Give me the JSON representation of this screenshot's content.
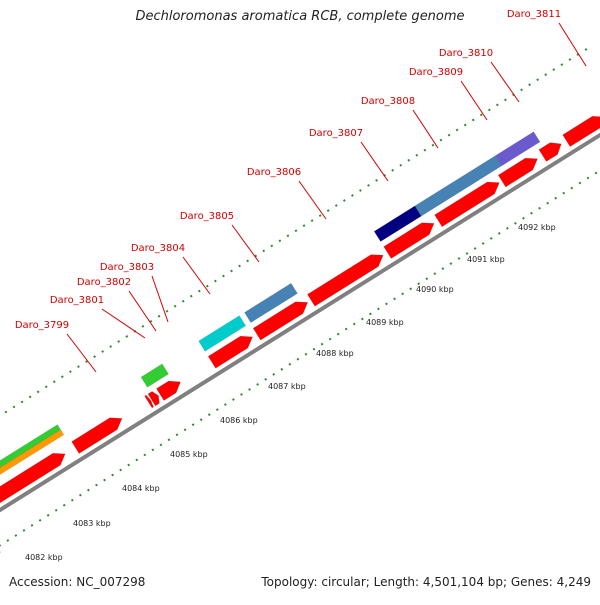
{
  "map": {
    "title": "Dechloromonas aromatica RCB, complete genome",
    "accession": "Accession: NC_007298",
    "topology": "Topology: circular; Length: 4,501,104 bp; Genes: 4,249"
  },
  "genes": [
    {
      "id": "g3799",
      "label": "Daro_3799"
    },
    {
      "id": "g3801",
      "label": "Daro_3801"
    },
    {
      "id": "g3802",
      "label": "Daro_3802"
    },
    {
      "id": "g3803",
      "label": "Daro_3803"
    },
    {
      "id": "g3804",
      "label": "Daro_3804"
    },
    {
      "id": "g3805",
      "label": "Daro_3805"
    },
    {
      "id": "g3806",
      "label": "Daro_3806"
    },
    {
      "id": "g3807",
      "label": "Daro_3807"
    },
    {
      "id": "g3808",
      "label": "Daro_3808"
    },
    {
      "id": "g3809",
      "label": "Daro_3809"
    },
    {
      "id": "g3810",
      "label": "Daro_3810"
    },
    {
      "id": "g3811",
      "label": "Daro_3811"
    }
  ],
  "scale_labels": [
    "4082 kbp",
    "4083 kbp",
    "4084 kbp",
    "4085 kbp",
    "4086 kbp",
    "4087 kbp",
    "4088 kbp",
    "4089 kbp",
    "4090 kbp",
    "4091 kbp",
    "4092 kbp"
  ],
  "colors": {
    "gene_red": "#ff0000",
    "backbone": "#808080",
    "tick_green": "#2e8b2e",
    "label_red": "#d40000",
    "navy": "#000080",
    "steelblue": "#4682b4",
    "cyan": "#00cccc",
    "green": "#33cc33",
    "orange": "#ff9900",
    "blue": "#0000ff",
    "slateblue": "#6a5acd",
    "light": "#d9d9d9"
  }
}
